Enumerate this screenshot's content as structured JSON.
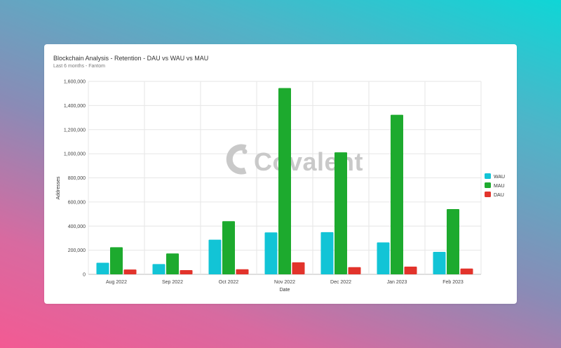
{
  "header": {
    "title": "Blockchain Analysis - Retention - DAU vs WAU vs MAU",
    "subtitle": "Last 6 months - Fantom"
  },
  "watermark": {
    "text": "Covalent"
  },
  "chart_data": {
    "type": "bar",
    "categories": [
      "Aug 2022",
      "Sep 2022",
      "Oct 2022",
      "Nov 2022",
      "Dec 2022",
      "Jan 2023",
      "Feb 2023"
    ],
    "series": [
      {
        "name": "WAU",
        "color": "#12c4d6",
        "values": [
          96000,
          85000,
          287000,
          348000,
          350000,
          265000,
          186000
        ]
      },
      {
        "name": "MAU",
        "color": "#1daa2e",
        "values": [
          225000,
          173000,
          441000,
          1545000,
          1012000,
          1323000,
          541000
        ]
      },
      {
        "name": "DAU",
        "color": "#e2332b",
        "values": [
          40000,
          35000,
          42000,
          100000,
          60000,
          64000,
          48000
        ]
      }
    ],
    "xlabel": "Date",
    "ylabel": "Addresses",
    "ylim": [
      0,
      1600000
    ],
    "yticks": [
      "0",
      "200,000",
      "400,000",
      "600,000",
      "800,000",
      "1,000,000",
      "1,200,000",
      "1,400,000",
      "1,600,000"
    ],
    "grid": true,
    "legend_position": "right"
  }
}
